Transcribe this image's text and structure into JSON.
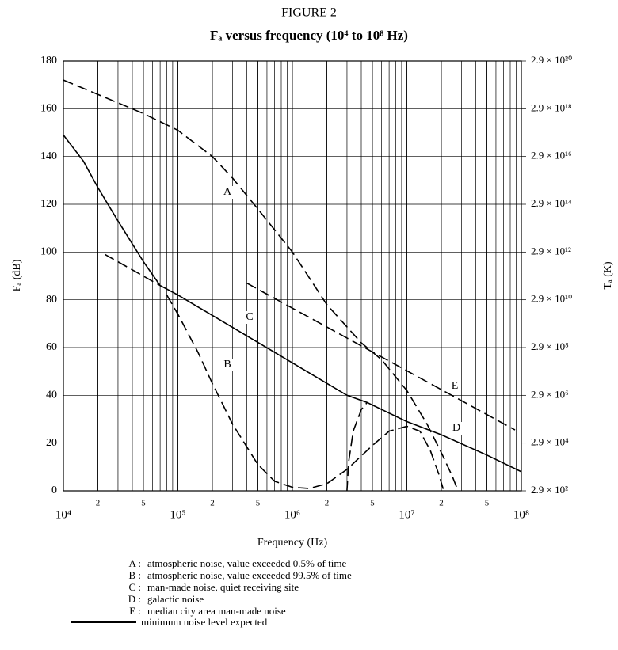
{
  "chart_data": {
    "type": "line",
    "figure": "FIGURE 2",
    "title": "Fₐ versus frequency (10⁴ to 10⁸ Hz)",
    "xlabel": "Frequency (Hz)",
    "ylabel": "Fₐ (dB)",
    "y2label": "Tₐ (K)",
    "xscale": "log",
    "xlim": [
      10000,
      100000000
    ],
    "xticks": [
      {
        "value": 10000,
        "label": "10⁴"
      },
      {
        "value": 20000,
        "label": "2"
      },
      {
        "value": 50000,
        "label": "5"
      },
      {
        "value": 100000,
        "label": "10⁵"
      },
      {
        "value": 200000,
        "label": "2"
      },
      {
        "value": 500000,
        "label": "5"
      },
      {
        "value": 1000000,
        "label": "10⁶"
      },
      {
        "value": 2000000,
        "label": "2"
      },
      {
        "value": 5000000,
        "label": "5"
      },
      {
        "value": 10000000,
        "label": "10⁷"
      },
      {
        "value": 20000000,
        "label": "2"
      },
      {
        "value": 50000000,
        "label": "5"
      },
      {
        "value": 100000000,
        "label": "10⁸"
      }
    ],
    "ylim": [
      0,
      180
    ],
    "yticks": [
      0,
      20,
      40,
      60,
      80,
      100,
      120,
      140,
      160,
      180
    ],
    "y2scale": "log",
    "y2lim": [
      290,
      2.9e+20
    ],
    "y2ticks": [
      {
        "value": 290,
        "label": "2.9 × 10²"
      },
      {
        "value": 29000,
        "label": "2.9 × 10⁴"
      },
      {
        "value": 2900000,
        "label": "2.9 × 10⁶"
      },
      {
        "value": 290000000,
        "label": "2.9 × 10⁸"
      },
      {
        "value": 29000000000,
        "label": "2.9 × 10¹⁰"
      },
      {
        "value": 2900000000000,
        "label": "2.9 × 10¹²"
      },
      {
        "value": 290000000000000,
        "label": "2.9 × 10¹⁴"
      },
      {
        "value": 29000000000000000,
        "label": "2.9 × 10¹⁶"
      },
      {
        "value": 2900000000000000000,
        "label": "2.9 × 10¹⁸"
      },
      {
        "value": 2.9e+20,
        "label": "2.9 × 10²⁰"
      }
    ],
    "grid": true,
    "minor_grid": true,
    "series": [
      {
        "name": "A",
        "color": "#000000",
        "dash": true,
        "x": [
          10000,
          20000,
          50000,
          100000,
          200000,
          300000,
          500000,
          1000000,
          2000000,
          4000000,
          6000000,
          10000000,
          15000000,
          20000000,
          25000000,
          28000000
        ],
        "values": [
          172,
          166,
          158,
          151,
          140,
          131,
          118,
          100,
          78,
          62,
          55,
          42,
          28,
          16,
          6,
          0
        ]
      },
      {
        "name": "B",
        "color": "#000000",
        "dash": true,
        "x": [
          80000,
          100000,
          150000,
          200000,
          300000,
          500000,
          700000,
          1000000,
          1400000,
          2000000,
          3000000,
          5000000,
          7000000,
          10000000,
          13000000,
          16000000,
          19000000,
          21000000
        ],
        "values": [
          82,
          74,
          58,
          45,
          28,
          11,
          4,
          1.5,
          1,
          3,
          9,
          19,
          25,
          27,
          25,
          17,
          7,
          0
        ]
      },
      {
        "name": "C",
        "color": "#000000",
        "dash": true,
        "x": [
          23000,
          70000
        ],
        "values": [
          99,
          86
        ]
      },
      {
        "name": "D",
        "color": "#000000",
        "dash": true,
        "x": [
          3000000,
          3100000,
          3400000,
          4000000,
          4500000
        ],
        "values": [
          0,
          12,
          25,
          34,
          37
        ]
      },
      {
        "name": "E",
        "color": "#000000",
        "dash": true,
        "x": [
          400000,
          1000000,
          10000000,
          88000000
        ],
        "values": [
          87,
          76.5,
          50.3,
          25.5
        ]
      },
      {
        "name": "minimum noise level expected",
        "color": "#000000",
        "dash": false,
        "x": [
          10000,
          15000,
          20000,
          30000,
          50000,
          70000,
          100000,
          1000000,
          3000000,
          4500000,
          10000000,
          20000000,
          50000000,
          100000000
        ],
        "values": [
          149,
          138,
          127,
          113,
          96,
          86,
          82,
          53.6,
          40,
          37,
          29,
          23.5,
          15,
          8
        ]
      }
    ],
    "legend": [
      {
        "key": "A :",
        "text": "atmospheric noise, value exceeded 0.5% of time"
      },
      {
        "key": "B :",
        "text": "atmospheric noise, value exceeded 99.5% of time"
      },
      {
        "key": "C :",
        "text": "man-made noise, quiet receiving site"
      },
      {
        "key": "D :",
        "text": "galactic noise"
      },
      {
        "key": "E :",
        "text": "median city area man-made noise"
      }
    ]
  }
}
